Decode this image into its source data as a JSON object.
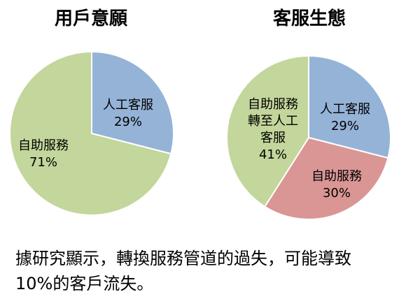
{
  "chart_data": [
    {
      "type": "pie",
      "title": "用戶意願",
      "slices": [
        {
          "label": "人工客服",
          "value": 29,
          "value_label": "29%",
          "color": "#95b3d7"
        },
        {
          "label": "自助服務",
          "value": 71,
          "value_label": "71%",
          "color": "#c3d69b"
        }
      ]
    },
    {
      "type": "pie",
      "title": "客服生態",
      "slices": [
        {
          "label": "人工客服",
          "value": 29,
          "value_label": "29%",
          "color": "#95b3d7"
        },
        {
          "label": "自助服務",
          "value": 30,
          "value_label": "30%",
          "color": "#d99694"
        },
        {
          "label": "自助服務轉至人工客服",
          "lines": [
            "自助服務",
            "轉至人工",
            "客服"
          ],
          "value": 41,
          "value_label": "41%",
          "color": "#c3d69b"
        }
      ]
    }
  ],
  "caption": {
    "line1": "據研究顯示，轉換服務管道的過失，可能導致",
    "line2": "10%的客戶流失。"
  }
}
